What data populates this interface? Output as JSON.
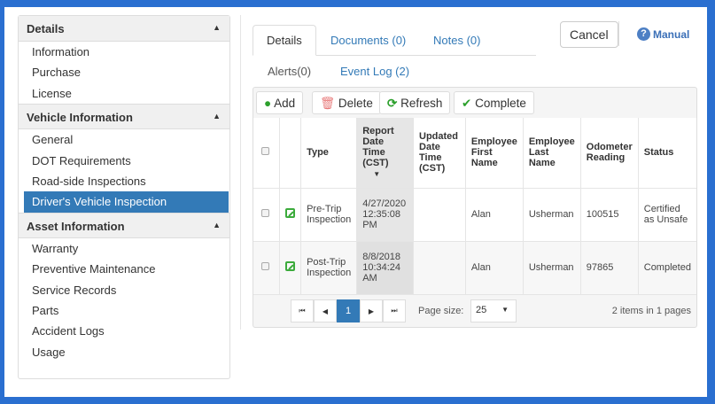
{
  "sidebar": {
    "sections": [
      {
        "title": "Details",
        "items": [
          "Information",
          "Purchase",
          "License"
        ]
      },
      {
        "title": "Vehicle Information",
        "items": [
          "General",
          "DOT Requirements",
          "Road-side Inspections",
          "Driver's Vehicle Inspection"
        ]
      },
      {
        "title": "Asset Information",
        "items": [
          "Warranty",
          "Preventive Maintenance",
          "Service Records",
          "Parts",
          "Accident Logs",
          "Usage"
        ]
      }
    ],
    "selected": "Driver's Vehicle Inspection",
    "caret": "▲"
  },
  "tabs": {
    "row1": [
      "Details",
      "Documents (0)",
      "Notes (0)"
    ],
    "row2": [
      "Alerts(0)",
      "Event Log (2)"
    ],
    "active": "Details"
  },
  "header": {
    "cancel": "Cancel",
    "manual": "Manual"
  },
  "toolbar": {
    "add": "Add",
    "delete": "Delete",
    "refresh": "Refresh",
    "complete": "Complete"
  },
  "grid": {
    "columns": [
      "Type",
      "Report Date Time (CST)",
      "Updated Date Time (CST)",
      "Employee First Name",
      "Employee Last Name",
      "Odometer Reading",
      "Status"
    ],
    "sort_indicator": "▼",
    "rows": [
      {
        "type": "Pre-Trip Inspection",
        "report": "4/27/2020 12:35:08 PM",
        "updated": "",
        "first": "Alan",
        "last": "Usherman",
        "odometer": "100515",
        "status": "Certified as Unsafe"
      },
      {
        "type": "Post-Trip Inspection",
        "report": "8/8/2018 10:34:24 AM",
        "updated": "",
        "first": "Alan",
        "last": "Usherman",
        "odometer": "97865",
        "status": "Completed"
      }
    ]
  },
  "pager": {
    "current": "1",
    "page_size_label": "Page size:",
    "page_size": "25",
    "summary": "2 items in 1 pages"
  },
  "colors": {
    "accent": "#337ab7",
    "frame": "#2a6fd0",
    "add": "#2ca02c",
    "delete": "#e87a7a"
  }
}
